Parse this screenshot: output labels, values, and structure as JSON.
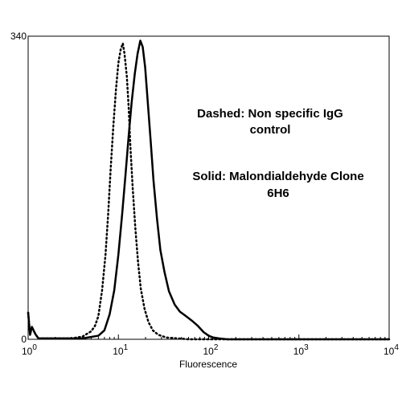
{
  "chart_data": {
    "type": "line",
    "title": "",
    "xlabel": "Fluorescence",
    "ylabel": "",
    "x_scale": "log",
    "xlim": [
      1,
      10000
    ],
    "ylim": [
      0,
      340
    ],
    "grid": false,
    "y_ticks": [
      {
        "value": 0,
        "label": "0"
      },
      {
        "value": 340,
        "label": "340"
      }
    ],
    "x_ticks": [
      {
        "value": 1,
        "base": "10",
        "exp": "0"
      },
      {
        "value": 10,
        "base": "10",
        "exp": "1"
      },
      {
        "value": 100,
        "base": "10",
        "exp": "2"
      },
      {
        "value": 1000,
        "base": "10",
        "exp": "3"
      },
      {
        "value": 10000,
        "base": "10",
        "exp": "4"
      }
    ],
    "annotations": [
      {
        "lines": [
          "Dashed: Non specific IgG",
          "control"
        ]
      },
      {
        "lines": [
          "Solid: Malondialdehyde Clone",
          "6H6"
        ]
      }
    ],
    "series": [
      {
        "style": "dotted",
        "color": "#000000",
        "x": [
          1,
          1.05,
          1.1,
          1.2,
          1.3,
          2,
          3,
          4,
          5,
          5.5,
          6,
          6.6,
          7.2,
          7.7,
          8.2,
          8.8,
          9.4,
          10.0,
          10.6,
          11.2,
          11.7,
          12.4,
          13.0,
          13.6,
          14.4,
          15.4,
          16.5,
          17.7,
          19.5,
          21.6,
          24.1,
          27.7,
          34,
          46,
          60,
          100,
          1000,
          10000
        ],
        "y": [
          30,
          5,
          14,
          6,
          1,
          1,
          1,
          3,
          9,
          15,
          26,
          55,
          95,
          140,
          190,
          240,
          280,
          310,
          325,
          332,
          320,
          295,
          260,
          215,
          170,
          125,
          87,
          57,
          34,
          19,
          10,
          5,
          2,
          1,
          0,
          0,
          0,
          0
        ]
      },
      {
        "style": "solid",
        "color": "#000000",
        "x": [
          1,
          1.05,
          1.1,
          1.2,
          1.3,
          2,
          4,
          6,
          7,
          8,
          9,
          10,
          11,
          12,
          13,
          14,
          15.2,
          16.3,
          17.5,
          18.6,
          19.8,
          21.2,
          22.8,
          24.5,
          26.8,
          29.2,
          32.5,
          36.3,
          42,
          48,
          56,
          65,
          76,
          88,
          100,
          112,
          130,
          160,
          200,
          1000,
          10000
        ],
        "y": [
          30,
          5,
          14,
          6,
          1,
          1,
          1,
          4,
          10,
          28,
          55,
          95,
          140,
          185,
          228,
          265,
          298,
          320,
          335,
          328,
          305,
          265,
          222,
          178,
          135,
          100,
          75,
          54,
          39,
          31,
          26,
          21,
          15,
          8,
          4,
          2,
          1,
          0,
          0,
          0,
          0
        ]
      }
    ]
  }
}
